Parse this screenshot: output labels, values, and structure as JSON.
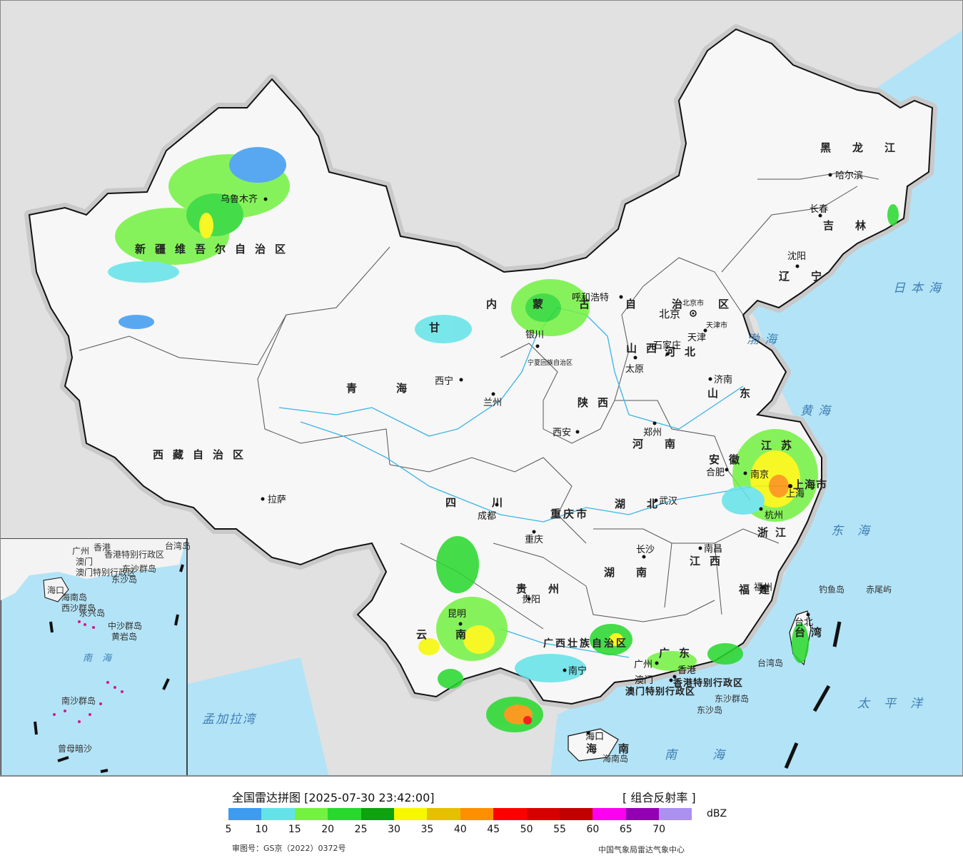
{
  "map": {
    "provinces": [
      {
        "key": "xinjiang",
        "name": "新疆维吾尔自治区"
      },
      {
        "key": "xizang",
        "name": "西藏自治区"
      },
      {
        "key": "qinghai",
        "name": "青海"
      },
      {
        "key": "sichuan",
        "name": "四川"
      },
      {
        "key": "gansu",
        "name": "甘"
      },
      {
        "key": "neimenggu",
        "name": "内蒙古自治区"
      },
      {
        "key": "heilongjiang",
        "name": "黑龙江"
      },
      {
        "key": "jilin",
        "name": "吉林"
      },
      {
        "key": "liaoning",
        "name": "辽宁"
      },
      {
        "key": "hebei",
        "name": "河北"
      },
      {
        "key": "shanxi",
        "name": "山西"
      },
      {
        "key": "shandong",
        "name": "山东"
      },
      {
        "key": "henan",
        "name": "河南"
      },
      {
        "key": "shaanxi",
        "name": "陕西"
      },
      {
        "key": "hubei",
        "name": "湖北"
      },
      {
        "key": "hunan",
        "name": "湖南"
      },
      {
        "key": "jiangxi",
        "name": "江西"
      },
      {
        "key": "fujian",
        "name": "福建"
      },
      {
        "key": "zhejiang",
        "name": "浙江"
      },
      {
        "key": "anhui",
        "name": "安徽"
      },
      {
        "key": "jiangsu",
        "name": "江苏"
      },
      {
        "key": "guizhou",
        "name": "贵州"
      },
      {
        "key": "yunnan",
        "name": "云南"
      },
      {
        "key": "guangxi",
        "name": "广西壮族自治区"
      },
      {
        "key": "guangdong",
        "name": "广东"
      },
      {
        "key": "hainan",
        "name": "海南"
      },
      {
        "key": "chongqing",
        "name": "重庆市"
      },
      {
        "key": "ningxia",
        "name": "宁夏回族自治区"
      },
      {
        "key": "taiwan",
        "name": "台湾"
      },
      {
        "key": "shanghai",
        "name": "上海市"
      },
      {
        "key": "hk",
        "name": "香港特别行政区"
      },
      {
        "key": "macau",
        "name": "澳门特别行政区"
      },
      {
        "key": "beijing",
        "name": "北京市"
      },
      {
        "key": "tianjin",
        "name": "天津市"
      }
    ],
    "cities": [
      "乌鲁木齐",
      "哈尔滨",
      "长春",
      "沈阳",
      "呼和浩特",
      "北京",
      "天津",
      "石家庄",
      "太原",
      "济南",
      "银川",
      "西宁",
      "兰州",
      "西安",
      "郑州",
      "合肥",
      "南京",
      "上海",
      "杭州",
      "武汉",
      "南昌",
      "长沙",
      "福州",
      "台北",
      "重庆",
      "成都",
      "贵阳",
      "昆明",
      "南宁",
      "广州",
      "澳门",
      "香港",
      "海口",
      "拉萨"
    ],
    "seas": [
      "日本海",
      "渤海",
      "黄海",
      "东海",
      "南海",
      "太平洋",
      "孟加拉湾"
    ],
    "islands": [
      "钓鱼岛",
      "赤尾屿",
      "台湾岛",
      "东沙群岛",
      "东沙岛",
      "海南岛"
    ],
    "inset": {
      "labels": [
        "广州",
        "澳门",
        "香港",
        "香港特别行政区",
        "澳门特别行政区",
        "东沙群岛",
        "东沙岛",
        "海口",
        "海南岛",
        "西沙群岛",
        "永兴岛",
        "中沙群岛",
        "黄岩岛",
        "南海",
        "南沙群岛",
        "曾母暗沙",
        "台湾岛"
      ]
    }
  },
  "legend": {
    "title": "全国雷达拼图 [2025-07-30 23:42:00]",
    "product": "[ 组合反射率 ]",
    "unit": "dBZ",
    "ticks": [
      "5",
      "10",
      "15",
      "20",
      "25",
      "30",
      "35",
      "40",
      "45",
      "50",
      "55",
      "60",
      "65",
      "70"
    ],
    "colors": [
      "#3d9bf0",
      "#63e3e8",
      "#73f240",
      "#27d82d",
      "#0ea20e",
      "#f7f701",
      "#e5c001",
      "#fe8f01",
      "#fd0000",
      "#d70000",
      "#c10000",
      "#fc00f0",
      "#9300b4",
      "#ab90f0"
    ],
    "approval": "审图号：GS京（2022）0372号",
    "source": "中国气象局雷达气象中心"
  }
}
